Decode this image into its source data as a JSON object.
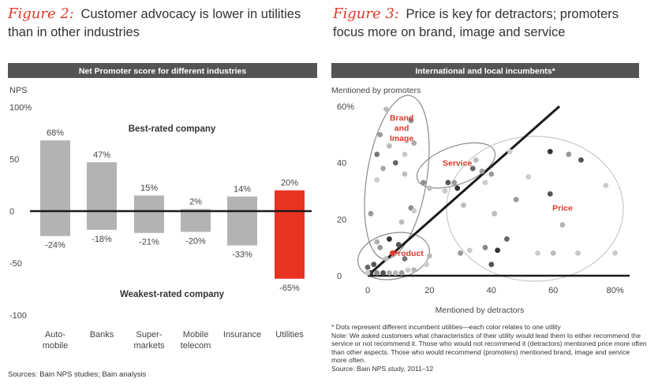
{
  "left_title": {
    "figure": "Figure 2:",
    "text": "Customer advocacy is lower in utilities than in other industries"
  },
  "right_title": {
    "figure": "Figure 3:",
    "text": "Price is key for detractors; promoters focus more on brand, image and service"
  },
  "chart_data": [
    {
      "type": "bar",
      "title": "Net Promoter score for different industries",
      "ylabel": "NPS",
      "ylim": [
        -100,
        100
      ],
      "yticks": [
        "100%",
        "50",
        "0",
        "-50",
        "-100"
      ],
      "categories": [
        "Auto-\nmobile",
        "Banks",
        "Super-\nmarkets",
        "Mobile\ntelecom",
        "Insurance",
        "Utilities"
      ],
      "series": [
        {
          "name": "Best-rated company",
          "values": [
            68,
            47,
            15,
            2,
            14,
            20
          ],
          "labels": [
            "68%",
            "47%",
            "15%",
            "2%",
            "14%",
            "20%"
          ]
        },
        {
          "name": "Weakest-rated company",
          "values": [
            -24,
            -18,
            -21,
            -20,
            -33,
            -65
          ],
          "labels": [
            "-24%",
            "-18%",
            "-21%",
            "-20%",
            "-33%",
            "-65%"
          ]
        }
      ],
      "annotations": [
        "Best-rated company",
        "Weakest-rated company"
      ],
      "colors": {
        "bar": "#b3b3b3",
        "highlight": "#e83323",
        "zero_line": "#1a1a1a"
      }
    },
    {
      "type": "scatter",
      "title": "International and local incumbents*",
      "xlabel": "Mentioned by detractors",
      "ylabel": "Mentioned by promoters",
      "xlim": [
        -3,
        82
      ],
      "ylim": [
        0,
        62
      ],
      "xticks": [
        "0",
        "20",
        "40",
        "60",
        "80%"
      ],
      "yticks": [
        "60%",
        "40",
        "20",
        "0"
      ],
      "diagonal": [
        [
          0,
          0
        ],
        [
          62,
          60
        ]
      ],
      "clusters": [
        {
          "name": "Brand\nand\nImage",
          "label_at": [
            11,
            55
          ]
        },
        {
          "name": "Service",
          "label_at": [
            29,
            39
          ]
        },
        {
          "name": "Price",
          "label_at": [
            63,
            23
          ]
        },
        {
          "name": "Product",
          "label_at": [
            13,
            7
          ]
        }
      ],
      "points": [
        {
          "x": 6,
          "y": 59,
          "c": "#bdbdbd"
        },
        {
          "x": 4,
          "y": 50,
          "c": "#9a9a9a"
        },
        {
          "x": 14,
          "y": 55,
          "c": "#8c8c8c"
        },
        {
          "x": 3,
          "y": 43,
          "c": "#777777"
        },
        {
          "x": 7,
          "y": 46,
          "c": "#bbbbbb"
        },
        {
          "x": 15,
          "y": 47,
          "c": "#aaaaaa"
        },
        {
          "x": 12,
          "y": 43,
          "c": "#c8c8c8"
        },
        {
          "x": 9,
          "y": 40,
          "c": "#666666"
        },
        {
          "x": 5,
          "y": 38,
          "c": "#a6a6a6"
        },
        {
          "x": 3,
          "y": 34,
          "c": "#cccccc"
        },
        {
          "x": 12,
          "y": 36,
          "c": "#bfbfbf"
        },
        {
          "x": 1,
          "y": 22,
          "c": "#999999"
        },
        {
          "x": 14,
          "y": 24,
          "c": "#8a8a8a"
        },
        {
          "x": 11,
          "y": 19,
          "c": "#bbbbbb"
        },
        {
          "x": 15,
          "y": 23,
          "c": "#cccccc"
        },
        {
          "x": 3,
          "y": 12,
          "c": "#b0b0b0"
        },
        {
          "x": 18,
          "y": 33,
          "c": "#8f8f8f"
        },
        {
          "x": 20,
          "y": 31,
          "c": "#bdbdbd"
        },
        {
          "x": 26,
          "y": 33,
          "c": "#555555"
        },
        {
          "x": 28,
          "y": 33,
          "c": "#999999"
        },
        {
          "x": 25,
          "y": 30,
          "c": "#c8c8c8"
        },
        {
          "x": 29,
          "y": 31,
          "c": "#333333"
        },
        {
          "x": 34,
          "y": 38,
          "c": "#666666"
        },
        {
          "x": 35,
          "y": 41,
          "c": "#bbbbbb"
        },
        {
          "x": 37,
          "y": 37,
          "c": "#a0a0a0"
        },
        {
          "x": 31,
          "y": 25,
          "c": "#bdbdbd"
        },
        {
          "x": 38,
          "y": 33,
          "c": "#cccccc"
        },
        {
          "x": 40,
          "y": 36,
          "c": "#9a9a9a"
        },
        {
          "x": 46,
          "y": 44,
          "c": "#cccccc"
        },
        {
          "x": 59,
          "y": 44,
          "c": "#333333"
        },
        {
          "x": 65,
          "y": 43,
          "c": "#999999"
        },
        {
          "x": 69,
          "y": 41,
          "c": "#555555"
        },
        {
          "x": 52,
          "y": 35,
          "c": "#cccccc"
        },
        {
          "x": 59,
          "y": 29,
          "c": "#555555"
        },
        {
          "x": 48,
          "y": 27,
          "c": "#999999"
        },
        {
          "x": 41,
          "y": 22,
          "c": "#bdbdbd"
        },
        {
          "x": 63,
          "y": 18,
          "c": "#b5b5b5"
        },
        {
          "x": 45,
          "y": 13,
          "c": "#666666"
        },
        {
          "x": 38,
          "y": 10,
          "c": "#888888"
        },
        {
          "x": 42,
          "y": 9,
          "c": "#333333"
        },
        {
          "x": 40,
          "y": 4,
          "c": "#555555"
        },
        {
          "x": 60,
          "y": 8,
          "c": "#bbbbbb"
        },
        {
          "x": 55,
          "y": 8,
          "c": "#cccccc"
        },
        {
          "x": 68,
          "y": 8,
          "c": "#c8c8c8"
        },
        {
          "x": 77,
          "y": 32,
          "c": "#cccccc"
        },
        {
          "x": 80,
          "y": 8,
          "c": "#cccccc"
        },
        {
          "x": 30,
          "y": 8,
          "c": "#999999"
        },
        {
          "x": 33,
          "y": 9,
          "c": "#cccccc"
        },
        {
          "x": 20,
          "y": 7,
          "c": "#bbbbbb"
        },
        {
          "x": 19,
          "y": 4,
          "c": "#cccccc"
        },
        {
          "x": 7,
          "y": 13,
          "c": "#333333"
        },
        {
          "x": 10,
          "y": 11,
          "c": "#555555"
        },
        {
          "x": 4,
          "y": 10,
          "c": "#999999"
        },
        {
          "x": 8,
          "y": 8,
          "c": "#e03a2c"
        },
        {
          "x": 12,
          "y": 6,
          "c": "#777777"
        },
        {
          "x": 6,
          "y": 6,
          "c": "#bbbbbb"
        },
        {
          "x": 0,
          "y": 3,
          "c": "#666666"
        },
        {
          "x": 2,
          "y": 4,
          "c": "#555555"
        },
        {
          "x": 1,
          "y": 1,
          "c": "#333333"
        },
        {
          "x": 3,
          "y": 1,
          "c": "#888888"
        },
        {
          "x": 5,
          "y": 1,
          "c": "#555555"
        },
        {
          "x": 7,
          "y": 1,
          "c": "#aaaaaa"
        },
        {
          "x": 9,
          "y": 1,
          "c": "#bbbbbb"
        },
        {
          "x": 11,
          "y": 1,
          "c": "#999999"
        },
        {
          "x": 15,
          "y": 2,
          "c": "#b5b5b5"
        },
        {
          "x": 0,
          "y": 1,
          "c": "#cccccc"
        },
        {
          "x": 13,
          "y": 2,
          "c": "#cccccc"
        }
      ],
      "colors": {
        "ellipse": "#8a8a8a",
        "price_ellipse": "#c8c8c8",
        "diagonal": "#1a1a1a",
        "cluster_label": "#e03a2c"
      }
    }
  ],
  "left_notes": {
    "sources": "Sources: Bain NPS studies; Bain analysis"
  },
  "right_notes": {
    "footnote": "* Dots represent different incumbent utilities—each color relates to one utility",
    "note": "Note: We asked customers what characteristics of their utility would lead them to either recommend the service or not recommend it. Those who would not recommend it (detractors) mentioned price more often than other aspects. Those who would recommend (promoters) mentioned brand, image and service more often.",
    "source": "Source: Bain NPS study, 2011–12"
  }
}
